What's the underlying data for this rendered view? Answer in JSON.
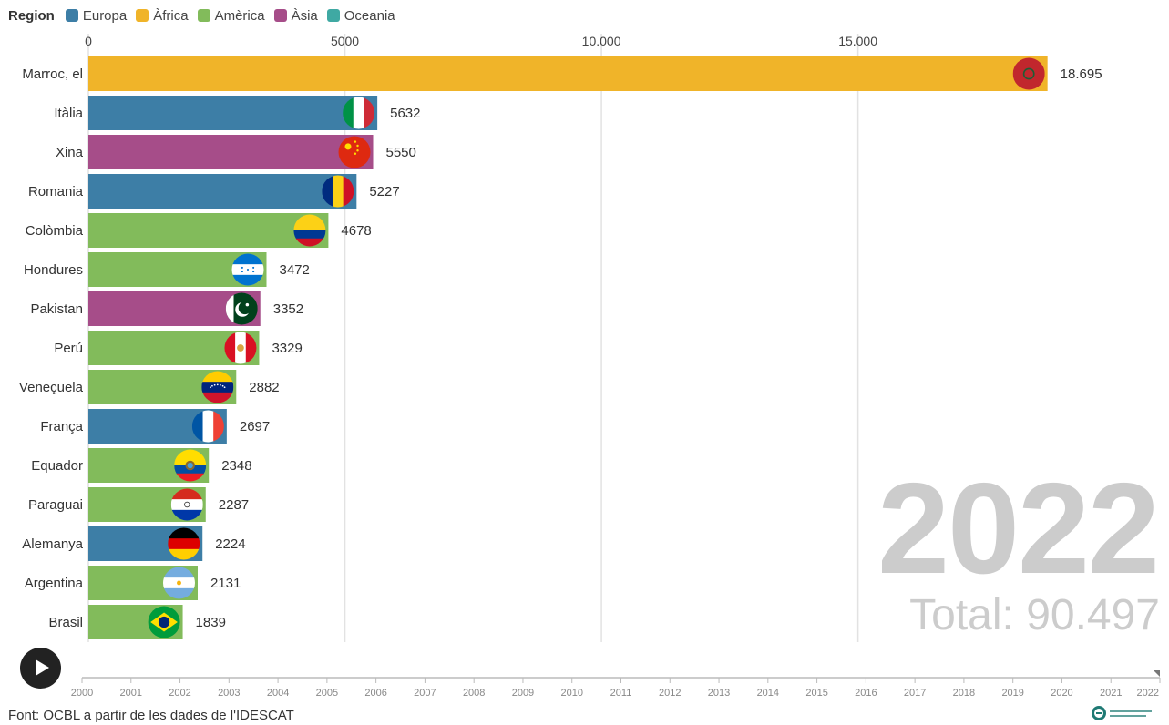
{
  "legend": {
    "title": "Region",
    "items": [
      {
        "name": "Europa",
        "color": "#3d7ea6"
      },
      {
        "name": "Àfrica",
        "color": "#f0b429"
      },
      {
        "name": "Amèrica",
        "color": "#82bb5b"
      },
      {
        "name": "Àsia",
        "color": "#a64d89"
      },
      {
        "name": "Oceania",
        "color": "#3fa9a3"
      }
    ]
  },
  "chart_data": {
    "type": "bar",
    "orientation": "horizontal",
    "xlim": [
      0,
      19500
    ],
    "x_ticks": [
      {
        "value": 0,
        "label": "0"
      },
      {
        "value": 5000,
        "label": "5000"
      },
      {
        "value": 10000,
        "label": "10.000"
      },
      {
        "value": 15000,
        "label": "15.000"
      }
    ],
    "grid": true,
    "legend_position": "top-left",
    "bars": [
      {
        "country": "Marroc, el",
        "value": 18695,
        "label": "18.695",
        "region": "Àfrica",
        "flag": "morocco-flag-icon"
      },
      {
        "country": "Itàlia",
        "value": 5632,
        "label": "5632",
        "region": "Europa",
        "flag": "italy-flag-icon"
      },
      {
        "country": "Xina",
        "value": 5550,
        "label": "5550",
        "region": "Àsia",
        "flag": "china-flag-icon"
      },
      {
        "country": "Romania",
        "value": 5227,
        "label": "5227",
        "region": "Europa",
        "flag": "romania-flag-icon"
      },
      {
        "country": "Colòmbia",
        "value": 4678,
        "label": "4678",
        "region": "Amèrica",
        "flag": "colombia-flag-icon"
      },
      {
        "country": "Hondures",
        "value": 3472,
        "label": "3472",
        "region": "Amèrica",
        "flag": "honduras-flag-icon"
      },
      {
        "country": "Pakistan",
        "value": 3352,
        "label": "3352",
        "region": "Àsia",
        "flag": "pakistan-flag-icon"
      },
      {
        "country": "Perú",
        "value": 3329,
        "label": "3329",
        "region": "Amèrica",
        "flag": "peru-flag-icon"
      },
      {
        "country": "Veneçuela",
        "value": 2882,
        "label": "2882",
        "region": "Amèrica",
        "flag": "venezuela-flag-icon"
      },
      {
        "country": "França",
        "value": 2697,
        "label": "2697",
        "region": "Europa",
        "flag": "france-flag-icon"
      },
      {
        "country": "Equador",
        "value": 2348,
        "label": "2348",
        "region": "Amèrica",
        "flag": "ecuador-flag-icon"
      },
      {
        "country": "Paraguai",
        "value": 2287,
        "label": "2287",
        "region": "Amèrica",
        "flag": "paraguay-flag-icon"
      },
      {
        "country": "Alemanya",
        "value": 2224,
        "label": "2224",
        "region": "Europa",
        "flag": "germany-flag-icon"
      },
      {
        "country": "Argentina",
        "value": 2131,
        "label": "2131",
        "region": "Amèrica",
        "flag": "argentina-flag-icon"
      },
      {
        "country": "Brasil",
        "value": 1839,
        "label": "1839",
        "region": "Amèrica",
        "flag": "brazil-flag-icon"
      }
    ]
  },
  "year_display": "2022",
  "total_display": "Total: 90.497",
  "timeline": {
    "years": [
      "2000",
      "2001",
      "2002",
      "2003",
      "2004",
      "2005",
      "2006",
      "2007",
      "2008",
      "2009",
      "2010",
      "2011",
      "2012",
      "2013",
      "2014",
      "2015",
      "2016",
      "2017",
      "2018",
      "2019",
      "2020",
      "2021",
      "2022"
    ],
    "current": "2022"
  },
  "play_icon": "play-icon",
  "source": "Font: OCBL a partir de les dades de l'IDESCAT"
}
